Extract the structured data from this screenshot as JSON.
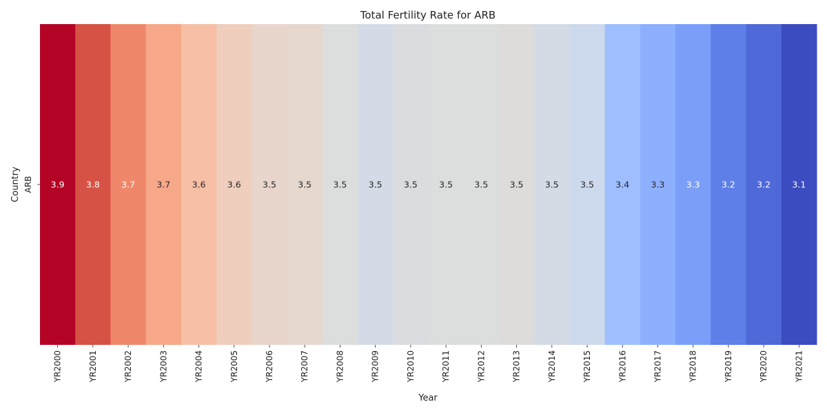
{
  "chart_data": {
    "type": "heatmap",
    "title": "Total Fertility Rate for ARB",
    "xlabel": "Year",
    "ylabel": "Country",
    "rows": [
      "ARB"
    ],
    "columns": [
      "YR2000",
      "YR2001",
      "YR2002",
      "YR2003",
      "YR2004",
      "YR2005",
      "YR2006",
      "YR2007",
      "YR2008",
      "YR2009",
      "YR2010",
      "YR2011",
      "YR2012",
      "YR2013",
      "YR2014",
      "YR2015",
      "YR2016",
      "YR2017",
      "YR2018",
      "YR2019",
      "YR2020",
      "YR2021"
    ],
    "values": [
      [
        3.9,
        3.8,
        3.7,
        3.7,
        3.6,
        3.6,
        3.5,
        3.5,
        3.5,
        3.5,
        3.5,
        3.5,
        3.5,
        3.5,
        3.5,
        3.5,
        3.4,
        3.3,
        3.3,
        3.2,
        3.2,
        3.1
      ]
    ],
    "cell_colors": [
      "#b40426",
      "#d65244",
      "#ef886b",
      "#f7a889",
      "#f6bfa6",
      "#efcebd",
      "#e8d6cc",
      "#e6d7cf",
      "#dcdddd",
      "#d4dbe6",
      "#dadce0",
      "#dcdddd",
      "#dcdddd",
      "#dedcdb",
      "#d5dbe5",
      "#cdd9ec",
      "#9ebeff",
      "#8db0fe",
      "#7b9ff9",
      "#5f7fe8",
      "#4f69d9",
      "#3b4cc0"
    ],
    "cell_text_colors": [
      "#ffffff",
      "#ffffff",
      "#ffffff",
      "#262626",
      "#262626",
      "#262626",
      "#262626",
      "#262626",
      "#262626",
      "#262626",
      "#262626",
      "#262626",
      "#262626",
      "#262626",
      "#262626",
      "#262626",
      "#262626",
      "#262626",
      "#ffffff",
      "#ffffff",
      "#ffffff",
      "#ffffff"
    ],
    "colormap": "coolwarm",
    "grid": false,
    "legend": "none"
  }
}
